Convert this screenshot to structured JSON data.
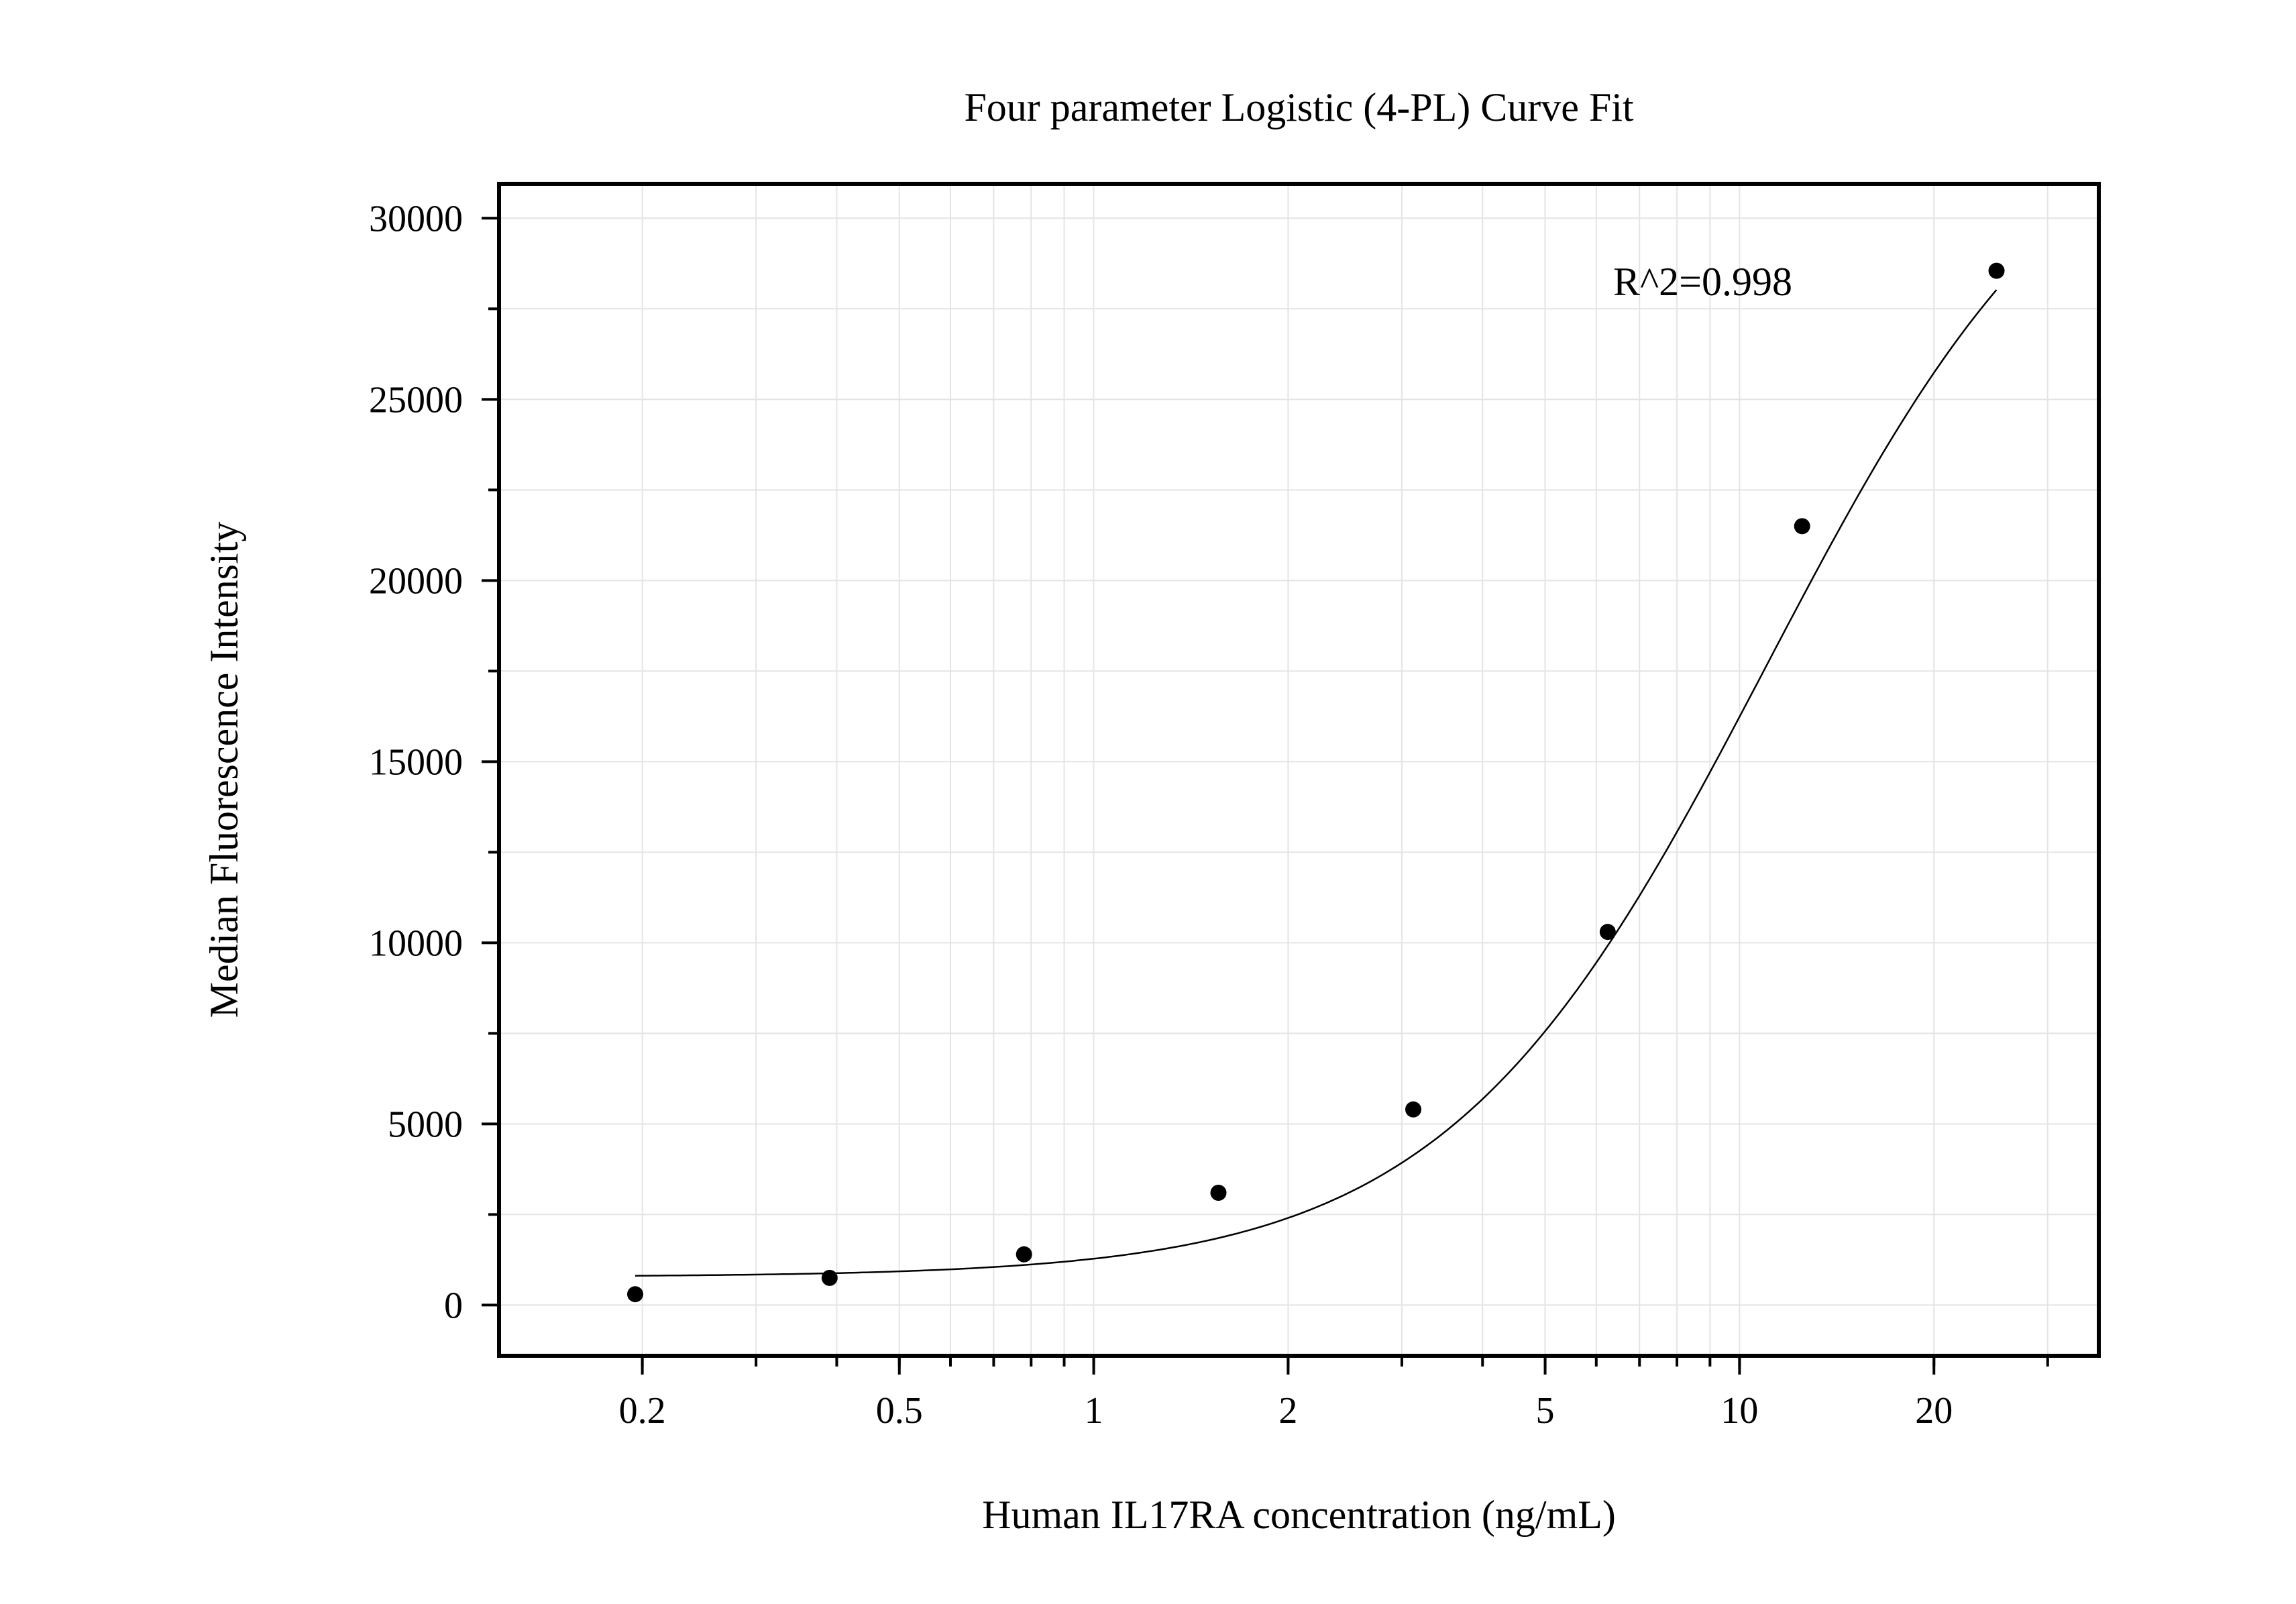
{
  "chart_data": {
    "type": "scatter",
    "title": "Four parameter Logistic (4-PL) Curve Fit",
    "xlabel": "Human IL17RA concentration (ng/mL)",
    "ylabel": "Median Fluorescence Intensity",
    "x_scale": "log",
    "xlim": [
      0.12,
      36
    ],
    "ylim": [
      -1400,
      30950
    ],
    "x_ticks": [
      {
        "value": 0.2,
        "label": "0.2"
      },
      {
        "value": 0.5,
        "label": "0.5"
      },
      {
        "value": 1,
        "label": "1"
      },
      {
        "value": 2,
        "label": "2"
      },
      {
        "value": 5,
        "label": "5"
      },
      {
        "value": 10,
        "label": "10"
      },
      {
        "value": 20,
        "label": "20"
      }
    ],
    "y_ticks": [
      {
        "value": 0,
        "label": "0"
      },
      {
        "value": 5000,
        "label": "5000"
      },
      {
        "value": 10000,
        "label": "10000"
      },
      {
        "value": 15000,
        "label": "15000"
      },
      {
        "value": 20000,
        "label": "20000"
      },
      {
        "value": 25000,
        "label": "25000"
      },
      {
        "value": 30000,
        "label": "30000"
      }
    ],
    "grid": true,
    "annotation": "R^2=0.998",
    "series": [
      {
        "type": "scatter",
        "color": "#000000",
        "x": [
          0.195,
          0.39,
          0.78,
          1.56,
          3.125,
          6.25,
          12.5,
          25
        ],
        "y": [
          300,
          750,
          1400,
          3100,
          5400,
          10300,
          21500,
          28550
        ]
      },
      {
        "type": "fit_curve",
        "model": "4PL",
        "color": "#000000",
        "x_range": [
          0.195,
          25
        ],
        "params": {
          "bottom": 780,
          "top": 34500,
          "ec50": 11.0,
          "hill": 1.75
        }
      }
    ]
  }
}
